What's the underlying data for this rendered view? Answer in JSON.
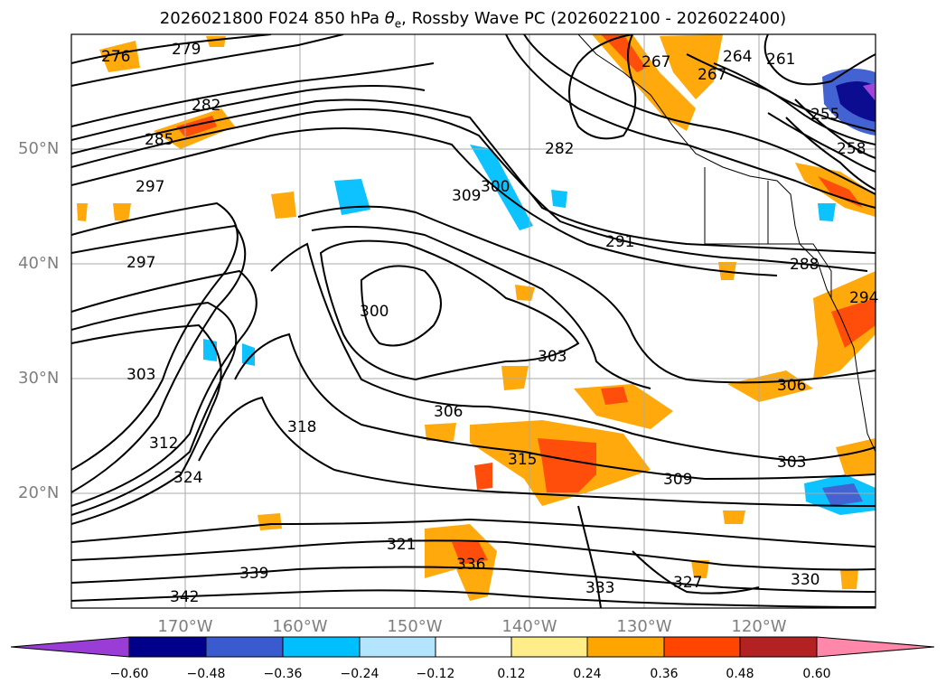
{
  "title": {
    "prefix": "2026021800 F024 850 hPa ",
    "theta": "θ",
    "theta_sub": "e",
    "suffix": ", Rossby Wave PC (2026022100 - 2026022400)"
  },
  "map": {
    "lat_labels": [
      "50°N",
      "40°N",
      "30°N",
      "20°N"
    ],
    "lon_labels": [
      "170°W",
      "160°W",
      "150°W",
      "140°W",
      "130°W",
      "120°W"
    ],
    "contour_labels": [
      "276",
      "279",
      "282",
      "285",
      "297",
      "297",
      "300",
      "300",
      "303",
      "303",
      "306",
      "306",
      "309",
      "309",
      "312",
      "315",
      "318",
      "321",
      "324",
      "336",
      "339",
      "342",
      "333",
      "327",
      "330",
      "282",
      "291",
      "288",
      "294",
      "261",
      "264",
      "267",
      "267",
      "255",
      "258",
      "303"
    ]
  },
  "colorbar": {
    "colors": [
      "#9a3dd6",
      "#00008b",
      "#3a5bd0",
      "#00bfff",
      "#b3e5ff",
      "#ffffff",
      "#ffed8a",
      "#ffa500",
      "#ff4500",
      "#b22222",
      "#ff88aa"
    ],
    "tick_labels": [
      "−0.60",
      "−0.48",
      "−0.36",
      "−0.24",
      "−0.12",
      "0.12",
      "0.24",
      "0.36",
      "0.48",
      "0.60"
    ]
  }
}
